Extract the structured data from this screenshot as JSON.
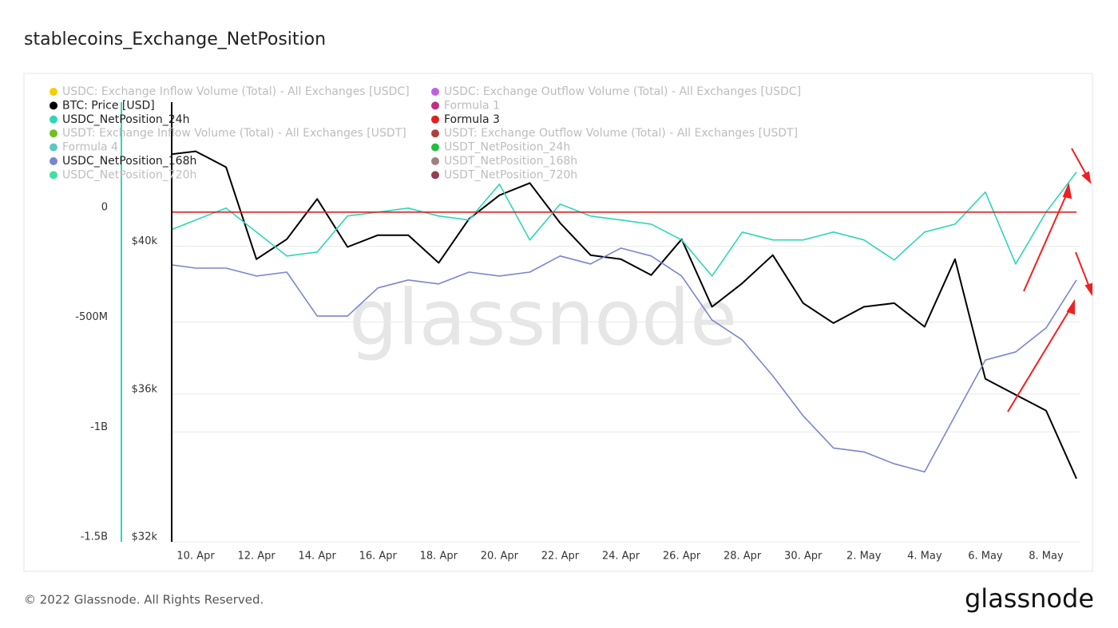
{
  "chart_data": {
    "type": "line",
    "title": "stablecoins_Exchange_NetPosition",
    "watermark": "glassnode",
    "footer": "© 2022 Glassnode. All Rights Reserved.",
    "brand": "glassnode",
    "categories": [
      null,
      "10. Apr",
      null,
      "12. Apr",
      null,
      "14. Apr",
      null,
      "16. Apr",
      null,
      "18. Apr",
      null,
      "20. Apr",
      null,
      "22. Apr",
      null,
      "24. Apr",
      null,
      "26. Apr",
      null,
      "28. Apr",
      null,
      "30. Apr",
      null,
      "2. May",
      null,
      "4. May",
      null,
      "6. May",
      null,
      "8. May",
      null
    ],
    "ylim": [
      -1500000000,
      500000000
    ],
    "yticks": [
      {
        "value": 0,
        "label": "0"
      },
      {
        "value": -500000000,
        "label": "-500M"
      },
      {
        "value": -1000000000,
        "label": "-1B"
      },
      {
        "value": -1500000000,
        "label": "-1.5B"
      }
    ],
    "y2lim": [
      32000,
      43900
    ],
    "y2ticks": [
      {
        "value": 32000,
        "label": "$32k"
      },
      {
        "value": 36000,
        "label": "$36k"
      },
      {
        "value": 40000,
        "label": "$40k"
      }
    ],
    "grid": true,
    "series": [
      {
        "name": "USDC: Exchange Inflow Volume (Total) - All Exchanges [USDC]",
        "color": "#f0d000",
        "visible": false
      },
      {
        "name": "USDC: Exchange Outflow Volume (Total) - All Exchanges [USDC]",
        "color": "#c060e0",
        "visible": false
      },
      {
        "name": "BTC: Price [USD]",
        "color": "#000000",
        "visible": true,
        "axis": "y2",
        "values": [
          42470,
          42570,
          42140,
          39650,
          40190,
          41280,
          39980,
          40300,
          40300,
          39550,
          40740,
          41380,
          41710,
          40630,
          39760,
          39650,
          39220,
          40190,
          38360,
          39000,
          39760,
          38460,
          37920,
          38360,
          38460,
          37820,
          39650,
          36410,
          35980,
          35550,
          33710
        ]
      },
      {
        "name": "Formula 1",
        "color": "#c03080",
        "visible": false
      },
      {
        "name": "USDC_NetPosition_24h",
        "color": "#2fd6b8",
        "visible": true,
        "values": [
          -91000000,
          -36000000,
          18000000,
          -91000000,
          -200000000,
          -182000000,
          -18000000,
          0,
          18000000,
          -18000000,
          -36000000,
          127000000,
          -127000000,
          36000000,
          -18000000,
          -36000000,
          -55000000,
          -127000000,
          -291000000,
          -91000000,
          -127000000,
          -127000000,
          -91000000,
          -127000000,
          -218000000,
          -91000000,
          -55000000,
          91000000,
          -236000000,
          0,
          182000000
        ]
      },
      {
        "name": "Formula 3",
        "color": "#e02020",
        "visible": true,
        "values": [
          0,
          0,
          0,
          0,
          0,
          0,
          0,
          0,
          0,
          0,
          0,
          0,
          0,
          0,
          0,
          0,
          0,
          0,
          0,
          0,
          0,
          0,
          0,
          0,
          0,
          0,
          0,
          0,
          0,
          0,
          0
        ]
      },
      {
        "name": "USDT: Exchange Inflow Volume (Total) - All Exchanges [USDT]",
        "color": "#70c020",
        "visible": false
      },
      {
        "name": "USDT: Exchange Outflow Volume (Total) - All Exchanges [USDT]",
        "color": "#b04040",
        "visible": false
      },
      {
        "name": "Formula 4",
        "color": "#5ec8c0",
        "visible": false
      },
      {
        "name": "USDT_NetPosition_24h",
        "color": "#20c040",
        "visible": false
      },
      {
        "name": "USDC_NetPosition_168h",
        "color": "#7a85d0",
        "visible": true,
        "values": [
          -236000000,
          -255000000,
          -255000000,
          -291000000,
          -273000000,
          -473000000,
          -473000000,
          -345000000,
          -309000000,
          -327000000,
          -273000000,
          -291000000,
          -273000000,
          -200000000,
          -236000000,
          -164000000,
          -200000000,
          -291000000,
          -491000000,
          -582000000,
          -745000000,
          -927000000,
          -1073000000,
          -1091000000,
          -1145000000,
          -1182000000,
          -927000000,
          -673000000,
          -636000000,
          -527000000,
          -309000000
        ]
      },
      {
        "name": "USDT_NetPosition_168h",
        "color": "#a08080",
        "visible": false
      },
      {
        "name": "USDC_NetPosition_720h",
        "color": "#40e0a0",
        "visible": false
      },
      {
        "name": "USDT_NetPosition_720h",
        "color": "#904050",
        "visible": false
      }
    ]
  }
}
